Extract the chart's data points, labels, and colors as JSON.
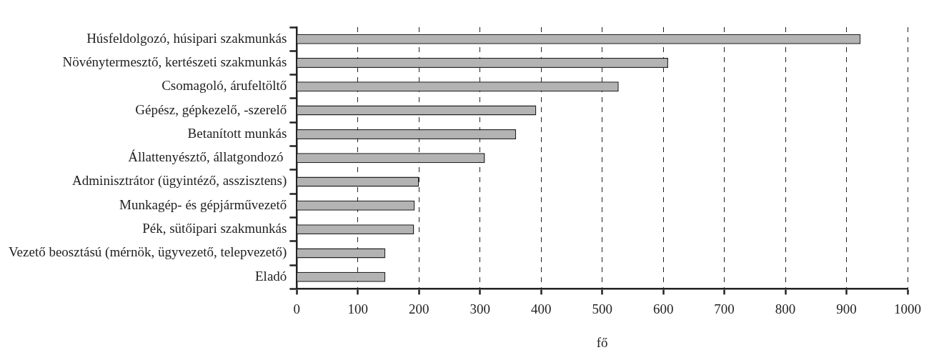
{
  "chart_data": {
    "type": "bar",
    "orientation": "horizontal",
    "xlabel": "fő",
    "categories": [
      "Húsfeldolgozó, húsipari szakmunkás",
      "Növénytermesztő, kertészeti szakmunkás",
      "Csomagoló, árufeltöltő",
      "Gépész, gépkezelő, -szerelő",
      "Betanított munkás",
      "Állattenyésztő, állatgondozó ",
      "Adminisztrátor (ügyintéző, asszisztens)",
      "Munkagép- és gépjárművezető",
      "Pék, sütőipari szakmunkás",
      "Vezető beosztású (mérnök, ügyvezető, telepvezető)",
      "Eladó"
    ],
    "values": [
      923,
      608,
      527,
      392,
      359,
      308,
      200,
      193,
      192,
      145,
      145
    ],
    "color": "#b3b3b3",
    "xlim": [
      0,
      1000
    ],
    "xticks": [
      0,
      100,
      200,
      300,
      400,
      500,
      600,
      700,
      800,
      900,
      1000
    ],
    "grid": "x",
    "legend": false
  }
}
